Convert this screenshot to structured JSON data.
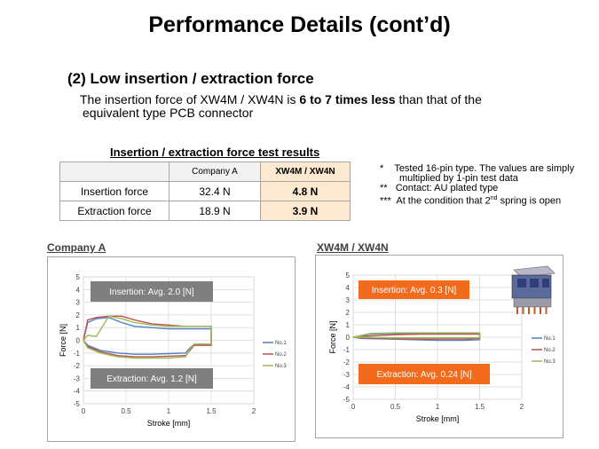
{
  "title": "Performance Details (cont’d)",
  "subheading": "(2) Low insertion / extraction force",
  "description": {
    "line1_pre": "The insertion force of XW4M / XW4N is ",
    "line1_bold": "6 to 7 times less",
    "line1_post": " than that of the",
    "line2": "equivalent type PCB connector"
  },
  "table": {
    "caption": "Insertion / extraction force test results",
    "headers": [
      "",
      "Company A",
      "XW4M / XW4N"
    ],
    "rows": [
      {
        "label": "Insertion force",
        "company_a": "32.4 N",
        "xw4m": "4.8 N"
      },
      {
        "label": "Extraction force",
        "company_a": "18.9 N",
        "xw4m": "3.9 N"
      }
    ]
  },
  "notes": {
    "n1_mark": "*",
    "n1_text": "Tested 16-pin type. The values are simply",
    "n1_text2": "multiplied by 1-pin test data",
    "n2_mark": "**",
    "n2_text": "Contact:  AU plated type",
    "n3_mark": "***",
    "n3_pre": "At the condition that 2",
    "n3_sup": "nd",
    "n3_post": " spring is open"
  },
  "colors": {
    "series1": "#4f81bd",
    "series2": "#c0504d",
    "series3": "#9bbb59",
    "grey_callout": "#7f7f7f",
    "orange_callout": "#f26a1b",
    "table_highlight": "#fde9d0"
  },
  "chart_data": [
    {
      "type": "line",
      "name": "Company A",
      "xlabel": "Stroke [mm]",
      "ylabel": "Force [N]",
      "xlim": [
        0,
        2
      ],
      "ylim": [
        -5,
        5
      ],
      "xticks": [
        "0",
        "0.5",
        "1",
        "1.5",
        "2"
      ],
      "yticks": [
        "5",
        "4",
        "3",
        "2",
        "1",
        "0",
        "-1",
        "-2",
        "-3",
        "-4",
        "-5"
      ],
      "grid": true,
      "legend": "right",
      "callouts": {
        "insertion": "Insertion:  Avg. 2.0 [N]",
        "extraction": "Extraction:  Avg. 1.2 [N]"
      },
      "series": [
        {
          "name": "No.1",
          "x": [
            0,
            0.05,
            0.15,
            0.3,
            0.45,
            0.6,
            0.8,
            1.0,
            1.2,
            1.4,
            1.5,
            1.5,
            1.45,
            1.3,
            1.25,
            1.2,
            1.0,
            0.8,
            0.6,
            0.4,
            0.2,
            0.05,
            0
          ],
          "y": [
            0,
            1.4,
            1.7,
            1.8,
            1.4,
            1.1,
            1.0,
            0.9,
            0.9,
            0.9,
            0.9,
            -0.3,
            -0.3,
            -0.3,
            -0.6,
            -1.0,
            -1.05,
            -1.1,
            -1.1,
            -1.0,
            -0.8,
            -0.4,
            0
          ]
        },
        {
          "name": "No.2",
          "x": [
            0,
            0.05,
            0.15,
            0.3,
            0.45,
            0.6,
            0.8,
            1.0,
            1.2,
            1.4,
            1.5,
            1.5,
            1.45,
            1.3,
            1.25,
            1.2,
            1.0,
            0.8,
            0.6,
            0.4,
            0.2,
            0.05,
            0
          ],
          "y": [
            0,
            1.6,
            1.8,
            1.9,
            1.9,
            1.6,
            1.3,
            1.2,
            1.1,
            1.1,
            1.1,
            -0.4,
            -0.4,
            -0.4,
            -0.8,
            -1.2,
            -1.25,
            -1.3,
            -1.3,
            -1.2,
            -0.9,
            -0.5,
            0
          ]
        },
        {
          "name": "No.3",
          "x": [
            0,
            0.05,
            0.15,
            0.3,
            0.45,
            0.6,
            0.8,
            1.0,
            1.2,
            1.4,
            1.5,
            1.5,
            1.45,
            1.3,
            1.25,
            1.2,
            1.0,
            0.8,
            0.6,
            0.4,
            0.2,
            0.05,
            0
          ],
          "y": [
            0,
            0.4,
            0.3,
            1.9,
            1.7,
            1.4,
            1.2,
            1.1,
            1.1,
            1.1,
            1.1,
            -0.3,
            -0.3,
            -0.3,
            -0.7,
            -1.3,
            -1.4,
            -1.4,
            -1.4,
            -1.3,
            -1.0,
            -0.6,
            0
          ]
        }
      ]
    },
    {
      "type": "line",
      "name": "XW4M / XW4N",
      "xlabel": "Stroke [mm]",
      "ylabel": "Force [N]",
      "xlim": [
        0,
        2
      ],
      "ylim": [
        -5,
        5
      ],
      "xticks": [
        "0",
        "0.5",
        "1",
        "1.5",
        "2"
      ],
      "yticks": [
        "5",
        "4",
        "3",
        "2",
        "1",
        "0",
        "-1",
        "-2",
        "-3",
        "-4",
        "-5"
      ],
      "grid": true,
      "legend": "right",
      "callouts": {
        "insertion": "Insertion:  Avg. 0.3 [N]",
        "extraction": "Extraction:  Avg. 0.24 [N]"
      },
      "series": [
        {
          "name": "No.1",
          "x": [
            0,
            0.2,
            0.5,
            0.8,
            1.1,
            1.4,
            1.5,
            1.5,
            1.3,
            1.0,
            0.7,
            0.4,
            0.1,
            0
          ],
          "y": [
            0,
            0.25,
            0.3,
            0.3,
            0.3,
            0.3,
            0.3,
            -0.2,
            -0.25,
            -0.25,
            -0.2,
            -0.15,
            -0.1,
            0
          ]
        },
        {
          "name": "No.2",
          "x": [
            0,
            0.2,
            0.5,
            0.8,
            1.1,
            1.4,
            1.5,
            1.5,
            1.3,
            1.0,
            0.7,
            0.4,
            0.1,
            0
          ],
          "y": [
            0,
            0.1,
            0.2,
            0.25,
            0.25,
            0.25,
            0.25,
            -0.1,
            -0.15,
            -0.15,
            -0.15,
            -0.1,
            -0.05,
            0
          ]
        },
        {
          "name": "No.3",
          "x": [
            0,
            0.2,
            0.5,
            0.8,
            1.1,
            1.4,
            1.5,
            1.5,
            1.3,
            1.0,
            0.7,
            0.4,
            0.1,
            0
          ],
          "y": [
            0,
            0.3,
            0.35,
            0.35,
            0.35,
            0.35,
            0.35,
            -0.05,
            -0.05,
            -0.05,
            -0.05,
            -0.05,
            0,
            0
          ]
        }
      ]
    }
  ]
}
